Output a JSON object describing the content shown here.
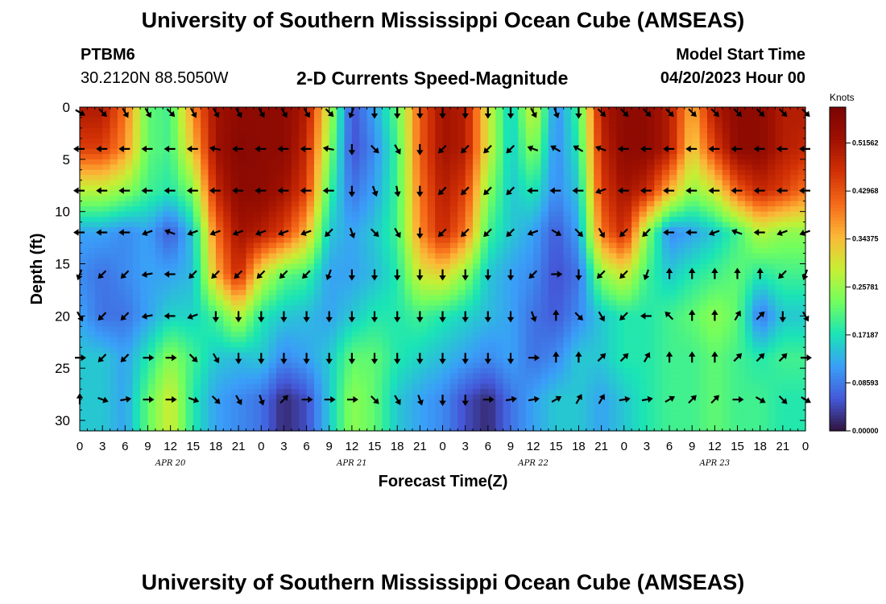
{
  "header": {
    "title": "University of Southern Mississippi Ocean Cube (AMSEAS)",
    "station_name": "PTBM6",
    "station_coords": "30.2120N  88.5050W",
    "plot_title": "2-D Currents Speed-Magnitude",
    "model_start_label": "Model Start Time",
    "model_start_value": "04/20/2023 Hour 00"
  },
  "footer": {
    "title": "University of Southern Mississippi Ocean Cube (AMSEAS)"
  },
  "colorbar": {
    "units": "Knots",
    "tick_labels": [
      "0.00000",
      "0.08593",
      "0.17187",
      "0.25781",
      "0.34375",
      "0.42968",
      "0.51562"
    ],
    "tick_values": [
      0.0,
      0.08593,
      0.17187,
      0.25781,
      0.34375,
      0.42968,
      0.51562
    ],
    "range": [
      0,
      0.58
    ],
    "colors": [
      "#30123b",
      "#4458d8",
      "#3a9ef8",
      "#1ae4b6",
      "#72fe5e",
      "#c7ef34",
      "#fbb938",
      "#f66b19",
      "#d23105",
      "#a01101",
      "#7a0403"
    ]
  },
  "chart_data": {
    "type": "heatmap",
    "title": "2-D Currents Speed-Magnitude",
    "xlabel": "Forecast Time(Z)",
    "ylabel": "Depth (ft)",
    "x_tick_labels": [
      "0",
      "3",
      "6",
      "9",
      "12",
      "15",
      "18",
      "21",
      "0",
      "3",
      "6",
      "9",
      "12",
      "15",
      "18",
      "21",
      "0",
      "3",
      "6",
      "9",
      "12",
      "15",
      "18",
      "21",
      "0",
      "3",
      "6",
      "9",
      "12",
      "15",
      "18",
      "21",
      "0"
    ],
    "day_labels": [
      {
        "label": "APR 20",
        "hour": 12
      },
      {
        "label": "APR 21",
        "hour": 36
      },
      {
        "label": "APR 22",
        "hour": 60
      },
      {
        "label": "APR 23",
        "hour": 84
      }
    ],
    "y_tick_labels": [
      "0",
      "5",
      "10",
      "15",
      "20",
      "25",
      "30"
    ],
    "y_tick_values": [
      0,
      5,
      10,
      15,
      20,
      25,
      30
    ],
    "xlim": [
      0,
      96
    ],
    "ylim": [
      0,
      31
    ],
    "depths": [
      0.5,
      4,
      8,
      12,
      16,
      20,
      24,
      28
    ],
    "hours": [
      0,
      3,
      6,
      9,
      12,
      15,
      18,
      21,
      24,
      27,
      30,
      33,
      36,
      39,
      42,
      45,
      48,
      51,
      54,
      57,
      60,
      63,
      66,
      69,
      72,
      75,
      78,
      81,
      84,
      87,
      90,
      93,
      96
    ],
    "speed_knots": [
      [
        0.5,
        0.5,
        0.4,
        0.22,
        0.2,
        0.38,
        0.52,
        0.55,
        0.55,
        0.55,
        0.5,
        0.28,
        0.05,
        0.12,
        0.22,
        0.42,
        0.52,
        0.5,
        0.3,
        0.15,
        0.3,
        0.1,
        0.2,
        0.5,
        0.55,
        0.55,
        0.5,
        0.35,
        0.5,
        0.55,
        0.55,
        0.5,
        0.5
      ],
      [
        0.45,
        0.45,
        0.38,
        0.22,
        0.2,
        0.34,
        0.52,
        0.56,
        0.55,
        0.55,
        0.48,
        0.25,
        0.05,
        0.1,
        0.2,
        0.42,
        0.52,
        0.5,
        0.3,
        0.15,
        0.25,
        0.1,
        0.18,
        0.48,
        0.55,
        0.55,
        0.5,
        0.32,
        0.45,
        0.55,
        0.55,
        0.5,
        0.48
      ],
      [
        0.28,
        0.28,
        0.25,
        0.2,
        0.18,
        0.24,
        0.48,
        0.55,
        0.55,
        0.52,
        0.45,
        0.2,
        0.08,
        0.12,
        0.2,
        0.4,
        0.5,
        0.45,
        0.25,
        0.15,
        0.18,
        0.1,
        0.15,
        0.45,
        0.52,
        0.48,
        0.35,
        0.25,
        0.3,
        0.42,
        0.48,
        0.45,
        0.4
      ],
      [
        0.12,
        0.12,
        0.1,
        0.12,
        0.06,
        0.15,
        0.4,
        0.52,
        0.5,
        0.45,
        0.35,
        0.15,
        0.12,
        0.15,
        0.2,
        0.38,
        0.48,
        0.4,
        0.2,
        0.15,
        0.12,
        0.06,
        0.12,
        0.4,
        0.48,
        0.25,
        0.1,
        0.12,
        0.15,
        0.2,
        0.28,
        0.25,
        0.25
      ],
      [
        0.1,
        0.08,
        0.1,
        0.12,
        0.12,
        0.14,
        0.35,
        0.48,
        0.3,
        0.22,
        0.2,
        0.12,
        0.12,
        0.14,
        0.18,
        0.3,
        0.32,
        0.25,
        0.15,
        0.12,
        0.1,
        0.05,
        0.08,
        0.25,
        0.3,
        0.2,
        0.15,
        0.18,
        0.2,
        0.22,
        0.18,
        0.2,
        0.2
      ],
      [
        0.12,
        0.08,
        0.08,
        0.12,
        0.16,
        0.16,
        0.2,
        0.28,
        0.18,
        0.15,
        0.14,
        0.12,
        0.15,
        0.18,
        0.18,
        0.2,
        0.18,
        0.16,
        0.14,
        0.12,
        0.08,
        0.06,
        0.1,
        0.15,
        0.18,
        0.18,
        0.2,
        0.22,
        0.25,
        0.22,
        0.08,
        0.15,
        0.15
      ],
      [
        0.15,
        0.15,
        0.12,
        0.18,
        0.25,
        0.2,
        0.15,
        0.14,
        0.15,
        0.1,
        0.12,
        0.15,
        0.22,
        0.22,
        0.18,
        0.16,
        0.14,
        0.12,
        0.1,
        0.12,
        0.08,
        0.1,
        0.15,
        0.15,
        0.18,
        0.18,
        0.2,
        0.2,
        0.22,
        0.2,
        0.18,
        0.2,
        0.2
      ],
      [
        0.15,
        0.15,
        0.12,
        0.22,
        0.3,
        0.18,
        0.12,
        0.1,
        0.08,
        0.02,
        0.05,
        0.15,
        0.25,
        0.22,
        0.15,
        0.12,
        0.1,
        0.05,
        0.02,
        0.08,
        0.12,
        0.15,
        0.15,
        0.12,
        0.15,
        0.18,
        0.2,
        0.2,
        0.22,
        0.2,
        0.2,
        0.18,
        0.18
      ]
    ],
    "arrow_hours": [
      0,
      3,
      6,
      9,
      12,
      15,
      18,
      21,
      24,
      27,
      30,
      33,
      36,
      39,
      42,
      45,
      48,
      51,
      54,
      57,
      60,
      63,
      66,
      69,
      72,
      75,
      78,
      81,
      84,
      87,
      90,
      93,
      96
    ],
    "arrow_direction_deg": [
      [
        120,
        135,
        150,
        150,
        135,
        150,
        150,
        150,
        150,
        150,
        150,
        135,
        200,
        180,
        180,
        180,
        180,
        180,
        180,
        180,
        150,
        160,
        180,
        135,
        135,
        135,
        135,
        135,
        135,
        135,
        135,
        135,
        135
      ],
      [
        270,
        270,
        270,
        270,
        270,
        270,
        280,
        270,
        270,
        270,
        270,
        280,
        180,
        135,
        150,
        180,
        225,
        225,
        225,
        225,
        290,
        300,
        300,
        290,
        270,
        270,
        270,
        270,
        270,
        270,
        270,
        270,
        270
      ],
      [
        270,
        270,
        270,
        270,
        270,
        270,
        270,
        270,
        270,
        270,
        270,
        270,
        180,
        160,
        170,
        180,
        225,
        225,
        225,
        225,
        270,
        270,
        270,
        250,
        270,
        270,
        270,
        270,
        270,
        270,
        270,
        270,
        270
      ],
      [
        270,
        270,
        270,
        250,
        290,
        250,
        250,
        250,
        250,
        250,
        250,
        225,
        160,
        135,
        150,
        180,
        225,
        225,
        225,
        225,
        250,
        120,
        135,
        150,
        225,
        225,
        270,
        270,
        250,
        290,
        270,
        250,
        250
      ],
      [
        200,
        225,
        225,
        260,
        270,
        225,
        225,
        225,
        225,
        225,
        225,
        200,
        180,
        180,
        180,
        180,
        180,
        180,
        180,
        180,
        225,
        90,
        180,
        225,
        225,
        200,
        0,
        0,
        0,
        0,
        0,
        225,
        200
      ],
      [
        150,
        225,
        225,
        260,
        270,
        250,
        180,
        180,
        180,
        180,
        180,
        180,
        180,
        180,
        180,
        180,
        180,
        180,
        180,
        180,
        160,
        0,
        135,
        150,
        225,
        270,
        315,
        0,
        0,
        30,
        45,
        180,
        150
      ],
      [
        90,
        225,
        225,
        90,
        90,
        135,
        150,
        180,
        180,
        180,
        180,
        180,
        180,
        180,
        180,
        180,
        180,
        180,
        180,
        180,
        90,
        0,
        0,
        45,
        45,
        30,
        0,
        0,
        0,
        45,
        45,
        45,
        90
      ],
      [
        0,
        110,
        80,
        90,
        90,
        110,
        135,
        150,
        160,
        45,
        90,
        90,
        90,
        135,
        150,
        160,
        180,
        180,
        90,
        80,
        80,
        60,
        30,
        30,
        80,
        80,
        60,
        45,
        45,
        90,
        120,
        135,
        120
      ]
    ]
  }
}
